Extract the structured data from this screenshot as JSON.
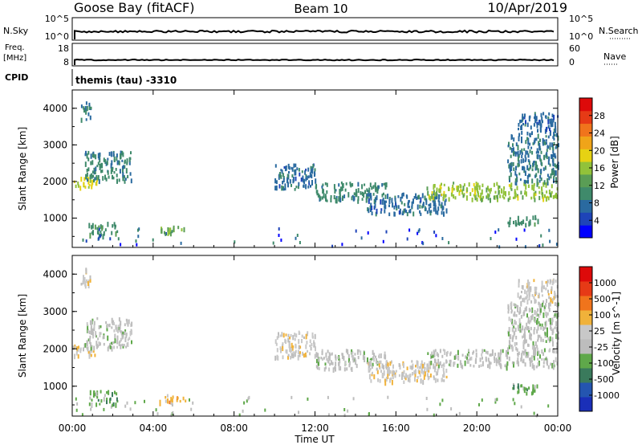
{
  "header": {
    "station": "Goose Bay (fitACF)",
    "beam": "Beam 10",
    "date": "10/Apr/2019"
  },
  "strips": {
    "nsky_label": "N.Sky",
    "nsky_ticks": [
      "10^5",
      "10^0"
    ],
    "nsearch_label": "N.Search",
    "nsearch_ticks": [
      "10^5",
      "10^0"
    ],
    "freq_label_1": "Freq.",
    "freq_label_2": "[MHz]",
    "freq_ticks": [
      "18",
      "8"
    ],
    "nave_label": "Nave",
    "nave_ticks": [
      "60",
      "0"
    ],
    "cpid_label": "CPID",
    "cpid_value": "themis (tau) -3310"
  },
  "colors": {
    "power": [
      "#0000ff",
      "#1e44b8",
      "#2a6aa0",
      "#3f8a6b",
      "#5a9d55",
      "#92c23a",
      "#e6d213",
      "#f0a419",
      "#f0741c",
      "#e63a16",
      "#dd0a0a"
    ],
    "velocity": [
      "#1a2fb8",
      "#2455b0",
      "#3a7a5c",
      "#5fa84a",
      "#bdbdbd",
      "#c8c8c8",
      "#f0b23a",
      "#f0741c",
      "#e63a16",
      "#dd0a0a"
    ]
  },
  "chart_data": [
    {
      "type": "heatmap",
      "panel": "power",
      "ylabel": "Slant Range [km]",
      "yticks": [
        "4000",
        "3000",
        "2000",
        "1000"
      ],
      "ylim": [
        200,
        4500
      ],
      "xlim": [
        0,
        24
      ],
      "colorbar_label": "Power [dB]",
      "colorbar_ticks": [
        "28",
        "24",
        "20",
        "16",
        "12",
        "8",
        "4"
      ],
      "colorbar_range": [
        0,
        32
      ],
      "regions": [
        {
          "t0": 0.0,
          "t1": 1.2,
          "r0": 1850,
          "r1": 2150,
          "level": 18
        },
        {
          "t0": 0.6,
          "t1": 2.9,
          "r0": 2050,
          "r1": 2850,
          "level": 8
        },
        {
          "t0": 0.4,
          "t1": 0.9,
          "r0": 3700,
          "r1": 4200,
          "level": 7
        },
        {
          "t0": 0.8,
          "t1": 2.2,
          "r0": 550,
          "r1": 900,
          "level": 10
        },
        {
          "t0": 4.3,
          "t1": 5.6,
          "r0": 600,
          "r1": 800,
          "level": 14
        },
        {
          "t0": 10.0,
          "t1": 12.0,
          "r0": 1800,
          "r1": 2500,
          "level": 6
        },
        {
          "t0": 12.0,
          "t1": 15.5,
          "r0": 1500,
          "r1": 2000,
          "level": 9
        },
        {
          "t0": 14.5,
          "t1": 18.5,
          "r0": 1150,
          "r1": 1700,
          "level": 6
        },
        {
          "t0": 17.5,
          "t1": 24.0,
          "r0": 1550,
          "r1": 2000,
          "level": 16
        },
        {
          "t0": 21.5,
          "t1": 24.0,
          "r0": 2000,
          "r1": 3300,
          "level": 7
        },
        {
          "t0": 21.5,
          "t1": 23.0,
          "r0": 850,
          "r1": 1100,
          "level": 10
        },
        {
          "t0": 22.0,
          "t1": 24.0,
          "r0": 3300,
          "r1": 3900,
          "level": 6
        }
      ]
    },
    {
      "type": "heatmap",
      "panel": "velocity",
      "ylabel": "Slant Range [km]",
      "yticks": [
        "4000",
        "3000",
        "2000",
        "1000"
      ],
      "ylim": [
        200,
        4500
      ],
      "xlim": [
        0,
        24
      ],
      "colorbar_label": "Velocity [m s^-1]",
      "colorbar_ticks": [
        "1000",
        "500",
        "100",
        "25",
        "-25",
        "-100",
        "-500",
        "-1000"
      ],
      "regions": [
        {
          "t0": 0.0,
          "t1": 1.2,
          "r0": 1850,
          "r1": 2150,
          "level": 5
        },
        {
          "t0": 0.6,
          "t1": 2.9,
          "r0": 2050,
          "r1": 2850,
          "level": 4
        },
        {
          "t0": 0.4,
          "t1": 0.9,
          "r0": 3700,
          "r1": 4200,
          "level": 5
        },
        {
          "t0": 0.8,
          "t1": 2.2,
          "r0": 550,
          "r1": 900,
          "level": 3
        },
        {
          "t0": 4.3,
          "t1": 5.6,
          "r0": 600,
          "r1": 800,
          "level": 6
        },
        {
          "t0": 10.0,
          "t1": 12.0,
          "r0": 1800,
          "r1": 2500,
          "level": 5
        },
        {
          "t0": 12.0,
          "t1": 15.5,
          "r0": 1500,
          "r1": 2000,
          "level": 4
        },
        {
          "t0": 14.5,
          "t1": 18.5,
          "r0": 1150,
          "r1": 1700,
          "level": 5
        },
        {
          "t0": 17.5,
          "t1": 24.0,
          "r0": 1550,
          "r1": 2000,
          "level": 4
        },
        {
          "t0": 21.5,
          "t1": 24.0,
          "r0": 2000,
          "r1": 3300,
          "level": 4
        },
        {
          "t0": 21.5,
          "t1": 23.0,
          "r0": 850,
          "r1": 1100,
          "level": 3
        },
        {
          "t0": 22.0,
          "t1": 24.0,
          "r0": 3300,
          "r1": 3900,
          "level": 5
        }
      ]
    }
  ],
  "xaxis": {
    "label": "Time UT",
    "ticks": [
      "00:00",
      "04:00",
      "08:00",
      "12:00",
      "16:00",
      "20:00",
      "00:00"
    ]
  }
}
